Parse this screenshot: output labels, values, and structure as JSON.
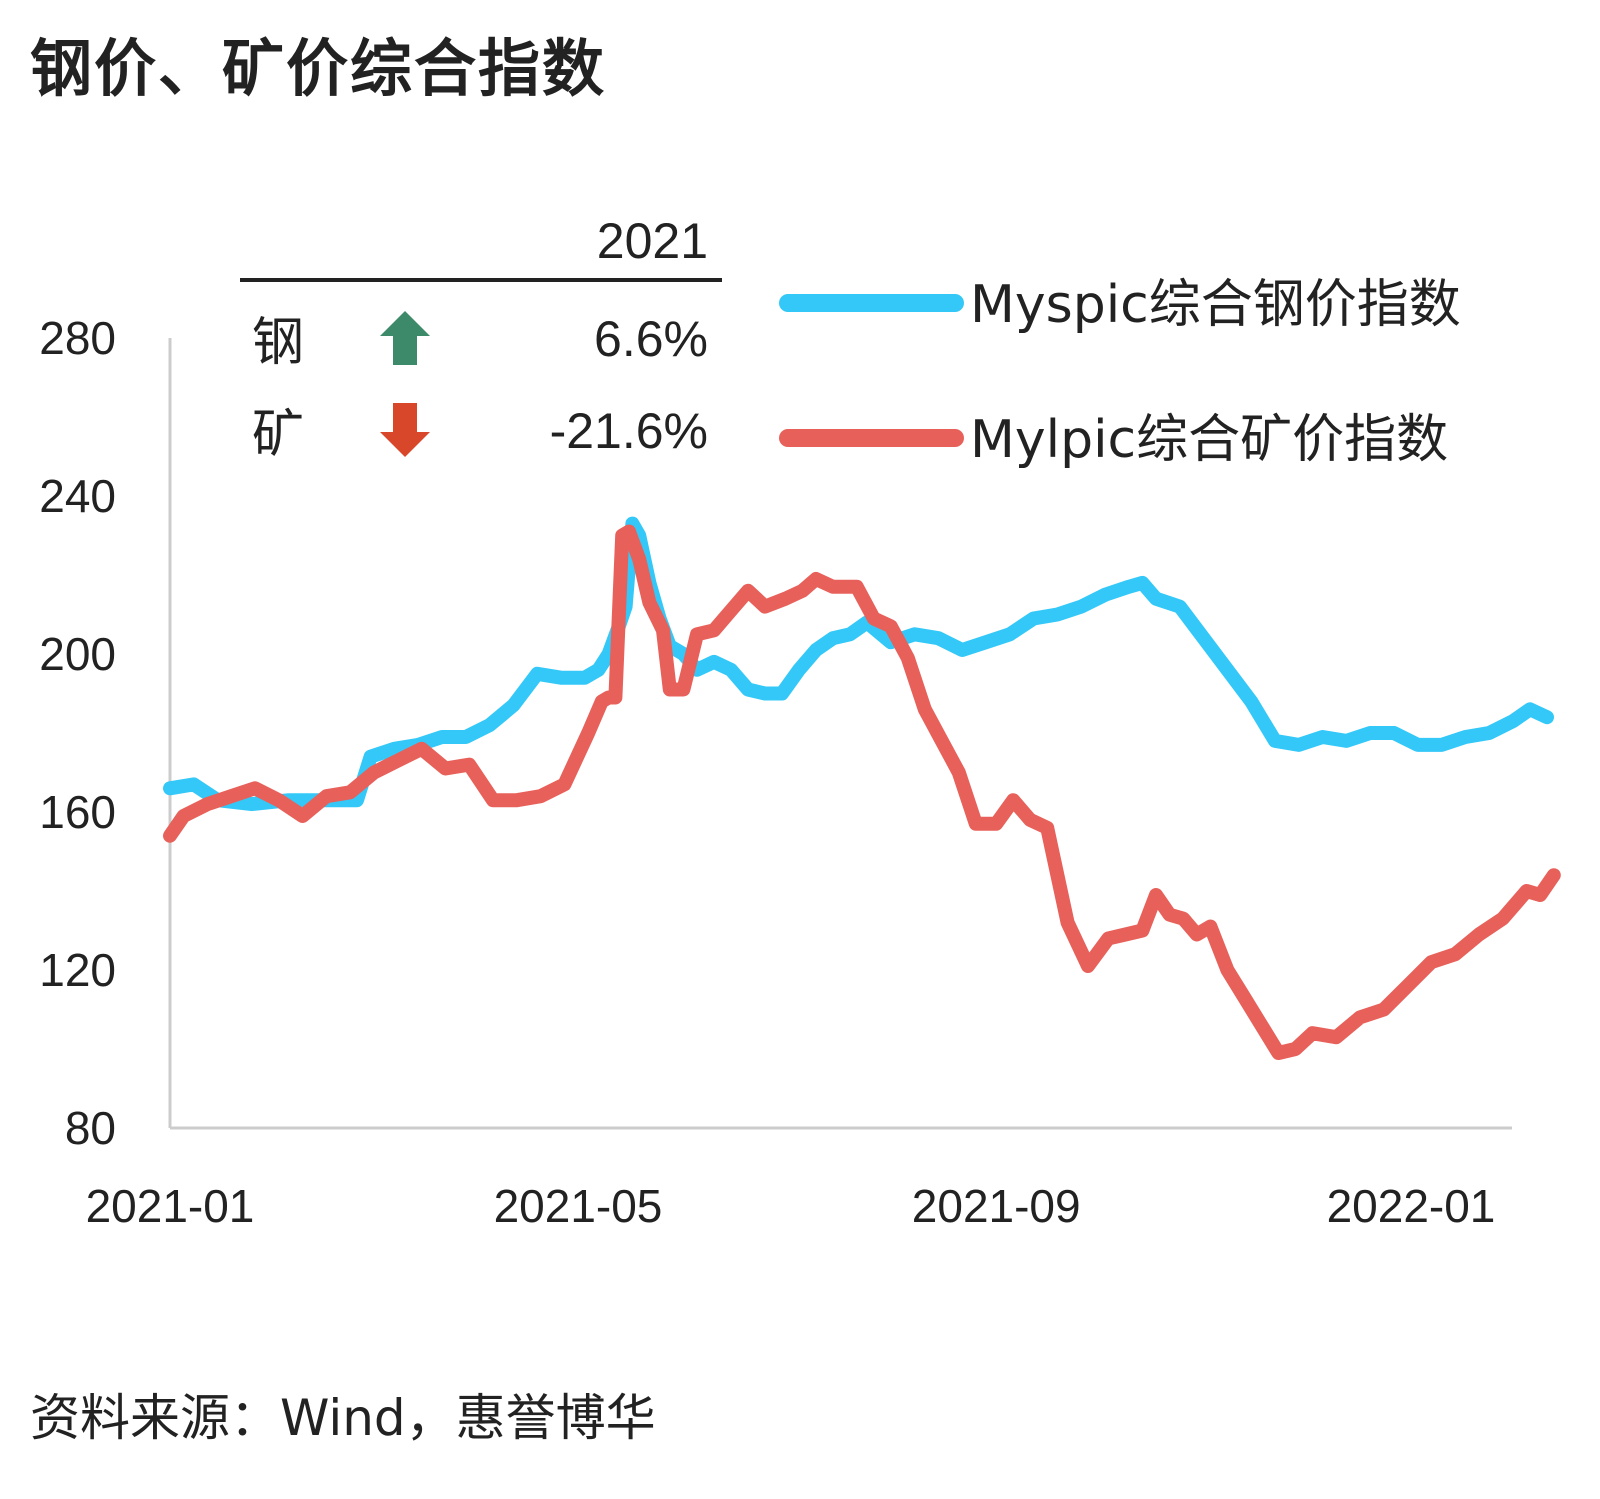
{
  "title": "钢价、矿价综合指数",
  "source": "资料来源：Wind，惠誉博华",
  "summary_table": {
    "header": "2021",
    "rows": [
      {
        "label": "钢",
        "direction": "up",
        "arrow_color": "#3d8a6b",
        "value": "6.6%"
      },
      {
        "label": "矿",
        "direction": "down",
        "arrow_color": "#d9472b",
        "value": "-21.6%"
      }
    ]
  },
  "chart_data": {
    "type": "line",
    "x_ticks": [
      "2021-01",
      "2021-05",
      "2021-09",
      "2022-01"
    ],
    "y_ticks": [
      80,
      120,
      160,
      200,
      240,
      280
    ],
    "ylim": [
      80,
      280
    ],
    "xlim": [
      "2021-01-01",
      "2022-01-31"
    ],
    "legend_position": "top-right",
    "series": [
      {
        "name": "Myspic综合钢价指数",
        "color": "#33c8f7",
        "points": [
          [
            "2021-01-01",
            166
          ],
          [
            "2021-01-08",
            167
          ],
          [
            "2021-01-15",
            163
          ],
          [
            "2021-01-25",
            162
          ],
          [
            "2021-02-05",
            163
          ],
          [
            "2021-02-15",
            163
          ],
          [
            "2021-02-25",
            163
          ],
          [
            "2021-03-01",
            174
          ],
          [
            "2021-03-08",
            176
          ],
          [
            "2021-03-15",
            177
          ],
          [
            "2021-03-22",
            179
          ],
          [
            "2021-03-29",
            179
          ],
          [
            "2021-04-05",
            182
          ],
          [
            "2021-04-12",
            187
          ],
          [
            "2021-04-19",
            195
          ],
          [
            "2021-04-26",
            194
          ],
          [
            "2021-05-03",
            194
          ],
          [
            "2021-05-07",
            196
          ],
          [
            "2021-05-10",
            200
          ],
          [
            "2021-05-13",
            207
          ],
          [
            "2021-05-15",
            212
          ],
          [
            "2021-05-17",
            233
          ],
          [
            "2021-05-19",
            230
          ],
          [
            "2021-05-22",
            218
          ],
          [
            "2021-05-25",
            209
          ],
          [
            "2021-05-28",
            202
          ],
          [
            "2021-06-01",
            200
          ],
          [
            "2021-06-05",
            196
          ],
          [
            "2021-06-10",
            198
          ],
          [
            "2021-06-15",
            196
          ],
          [
            "2021-06-20",
            191
          ],
          [
            "2021-06-25",
            190
          ],
          [
            "2021-06-30",
            190
          ],
          [
            "2021-07-05",
            196
          ],
          [
            "2021-07-10",
            201
          ],
          [
            "2021-07-15",
            204
          ],
          [
            "2021-07-20",
            205
          ],
          [
            "2021-07-25",
            208
          ],
          [
            "2021-08-01",
            203
          ],
          [
            "2021-08-08",
            205
          ],
          [
            "2021-08-15",
            204
          ],
          [
            "2021-08-22",
            201
          ],
          [
            "2021-08-29",
            203
          ],
          [
            "2021-09-05",
            205
          ],
          [
            "2021-09-12",
            209
          ],
          [
            "2021-09-19",
            210
          ],
          [
            "2021-09-26",
            212
          ],
          [
            "2021-10-03",
            215
          ],
          [
            "2021-10-10",
            217
          ],
          [
            "2021-10-14",
            218
          ],
          [
            "2021-10-18",
            214
          ],
          [
            "2021-10-25",
            212
          ],
          [
            "2021-11-01",
            204
          ],
          [
            "2021-11-08",
            196
          ],
          [
            "2021-11-15",
            188
          ],
          [
            "2021-11-22",
            178
          ],
          [
            "2021-11-29",
            177
          ],
          [
            "2021-12-06",
            179
          ],
          [
            "2021-12-13",
            178
          ],
          [
            "2021-12-20",
            180
          ],
          [
            "2021-12-27",
            180
          ],
          [
            "2022-01-03",
            177
          ],
          [
            "2022-01-10",
            177
          ],
          [
            "2022-01-17",
            179
          ],
          [
            "2022-01-24",
            180
          ],
          [
            "2022-01-31",
            183
          ],
          [
            "2022-02-05",
            186
          ],
          [
            "2022-02-10",
            184
          ]
        ]
      },
      {
        "name": "Mylpic综合矿价指数",
        "color": "#e8605a",
        "points": [
          [
            "2021-01-01",
            154
          ],
          [
            "2021-01-05",
            159
          ],
          [
            "2021-01-12",
            162
          ],
          [
            "2021-01-19",
            164
          ],
          [
            "2021-01-26",
            166
          ],
          [
            "2021-02-02",
            163
          ],
          [
            "2021-02-09",
            159
          ],
          [
            "2021-02-16",
            164
          ],
          [
            "2021-02-23",
            165
          ],
          [
            "2021-03-02",
            170
          ],
          [
            "2021-03-09",
            173
          ],
          [
            "2021-03-16",
            176
          ],
          [
            "2021-03-23",
            171
          ],
          [
            "2021-03-30",
            172
          ],
          [
            "2021-04-06",
            163
          ],
          [
            "2021-04-13",
            163
          ],
          [
            "2021-04-20",
            164
          ],
          [
            "2021-04-27",
            167
          ],
          [
            "2021-05-04",
            180
          ],
          [
            "2021-05-08",
            188
          ],
          [
            "2021-05-10",
            189
          ],
          [
            "2021-05-12",
            189
          ],
          [
            "2021-05-14",
            230
          ],
          [
            "2021-05-16",
            231
          ],
          [
            "2021-05-19",
            224
          ],
          [
            "2021-05-22",
            213
          ],
          [
            "2021-05-26",
            206
          ],
          [
            "2021-05-28",
            191
          ],
          [
            "2021-06-01",
            191
          ],
          [
            "2021-06-05",
            205
          ],
          [
            "2021-06-10",
            206
          ],
          [
            "2021-06-15",
            211
          ],
          [
            "2021-06-20",
            216
          ],
          [
            "2021-06-25",
            212
          ],
          [
            "2021-07-01",
            214
          ],
          [
            "2021-07-06",
            216
          ],
          [
            "2021-07-10",
            219
          ],
          [
            "2021-07-15",
            217
          ],
          [
            "2021-07-22",
            217
          ],
          [
            "2021-07-27",
            209
          ],
          [
            "2021-08-01",
            207
          ],
          [
            "2021-08-06",
            199
          ],
          [
            "2021-08-11",
            186
          ],
          [
            "2021-08-16",
            178
          ],
          [
            "2021-08-21",
            170
          ],
          [
            "2021-08-26",
            157
          ],
          [
            "2021-09-01",
            157
          ],
          [
            "2021-09-06",
            163
          ],
          [
            "2021-09-11",
            158
          ],
          [
            "2021-09-16",
            156
          ],
          [
            "2021-09-22",
            132
          ],
          [
            "2021-09-28",
            121
          ],
          [
            "2021-10-04",
            128
          ],
          [
            "2021-10-09",
            129
          ],
          [
            "2021-10-14",
            130
          ],
          [
            "2021-10-18",
            139
          ],
          [
            "2021-10-22",
            134
          ],
          [
            "2021-10-26",
            133
          ],
          [
            "2021-10-30",
            129
          ],
          [
            "2021-11-03",
            131
          ],
          [
            "2021-11-08",
            120
          ],
          [
            "2021-11-13",
            113
          ],
          [
            "2021-11-18",
            106
          ],
          [
            "2021-11-23",
            99
          ],
          [
            "2021-11-28",
            100
          ],
          [
            "2021-12-03",
            104
          ],
          [
            "2021-12-10",
            103
          ],
          [
            "2021-12-17",
            108
          ],
          [
            "2021-12-24",
            110
          ],
          [
            "2021-12-31",
            116
          ],
          [
            "2022-01-07",
            122
          ],
          [
            "2022-01-14",
            124
          ],
          [
            "2022-01-21",
            129
          ],
          [
            "2022-01-28",
            133
          ],
          [
            "2022-02-04",
            140
          ],
          [
            "2022-02-08",
            139
          ],
          [
            "2022-02-12",
            144
          ]
        ]
      }
    ]
  }
}
